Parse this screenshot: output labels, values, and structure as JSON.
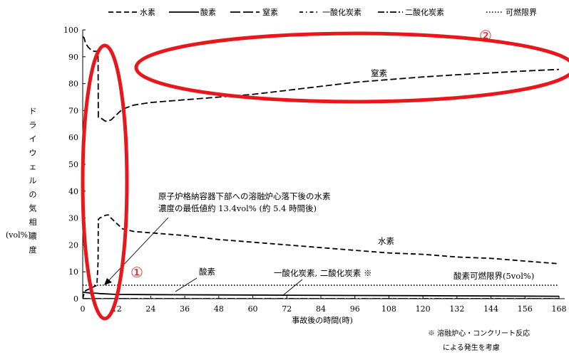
{
  "chart_data": {
    "type": "line",
    "title": "",
    "xlabel": "事故後の時間(時)",
    "ylabel_vertical": "ドライウェルの気相濃度",
    "ylabel_unit": "(vol%)",
    "xlim": [
      0,
      168
    ],
    "ylim": [
      0,
      100
    ],
    "xticks": [
      0,
      12,
      24,
      36,
      48,
      60,
      72,
      84,
      96,
      108,
      120,
      132,
      144,
      156,
      168
    ],
    "yticks": [
      0,
      10,
      20,
      30,
      40,
      50,
      60,
      70,
      80,
      90,
      100
    ],
    "grid": false,
    "legend_position": "top",
    "series": [
      {
        "name": "水素",
        "style": "dashed",
        "x": [
          0,
          0.5,
          1,
          2,
          3,
          4,
          5,
          5.4,
          5.5,
          6,
          8,
          9,
          10,
          12,
          14,
          18,
          24,
          36,
          48,
          60,
          72,
          84,
          96,
          108,
          120,
          132,
          144,
          156,
          168
        ],
        "y": [
          0,
          2,
          3,
          3.5,
          4,
          4.5,
          5,
          13.4,
          29.5,
          30,
          31,
          31.2,
          30,
          28,
          26,
          25,
          24.5,
          23.5,
          22,
          21,
          20,
          19,
          18,
          17,
          16.5,
          15.5,
          15,
          14,
          13
        ]
      },
      {
        "name": "酸素",
        "style": "solid",
        "x": [
          0,
          0.3,
          1,
          2,
          3,
          5,
          6,
          12,
          24,
          48,
          72,
          96,
          120,
          144,
          168
        ],
        "y": [
          2.5,
          2.4,
          2.3,
          2.2,
          2.1,
          2.0,
          1.9,
          1.6,
          1.5,
          1.4,
          1.3,
          1.2,
          1.1,
          1.0,
          0.9
        ]
      },
      {
        "name": "窒素",
        "style": "dashed",
        "x": [
          0,
          0.5,
          1,
          2,
          3,
          4,
          5,
          5.4,
          5.5,
          6,
          8,
          10,
          12,
          14,
          18,
          24,
          36,
          48,
          60,
          72,
          84,
          96,
          108,
          120,
          132,
          144,
          156,
          168
        ],
        "y": [
          97.5,
          97,
          95,
          93.5,
          92.5,
          92,
          92,
          92,
          67.5,
          67.5,
          66,
          66.5,
          68.5,
          70.5,
          72,
          73,
          74,
          75,
          76,
          77.5,
          79,
          80.5,
          81.5,
          82.5,
          83.3,
          84,
          84.7,
          85.3
        ]
      },
      {
        "name": "一酸化炭素",
        "style": "dashdot",
        "x": [
          0,
          168
        ],
        "y": [
          0,
          0
        ]
      },
      {
        "name": "二酸化炭素",
        "style": "dashdotdot",
        "x": [
          0,
          168
        ],
        "y": [
          0,
          0
        ]
      },
      {
        "name": "可燃限界",
        "style": "dotted",
        "x": [
          0,
          168
        ],
        "y": [
          5,
          5
        ]
      }
    ],
    "annotations": {
      "nitrogen_label": "窒素",
      "hydrogen_label": "水素",
      "oxygen_label": "酸素",
      "co_co2_label": "一酸化炭素, 二酸化炭素 ※",
      "flammable_limit_label": "酸素可燃限界(5vol%)",
      "min_value_line1": "原子炉格納容器下部への溶融炉心落下後の水素",
      "min_value_line2": "濃度の最低値約 13.4vol% (約 5.4 時間後)",
      "circle_1": "①",
      "circle_2": "②"
    },
    "footnote_line1": "※ 溶融炉心・コンクリート反応",
    "footnote_line2": "による発生を考慮",
    "highlight_color": "#e8171c"
  }
}
